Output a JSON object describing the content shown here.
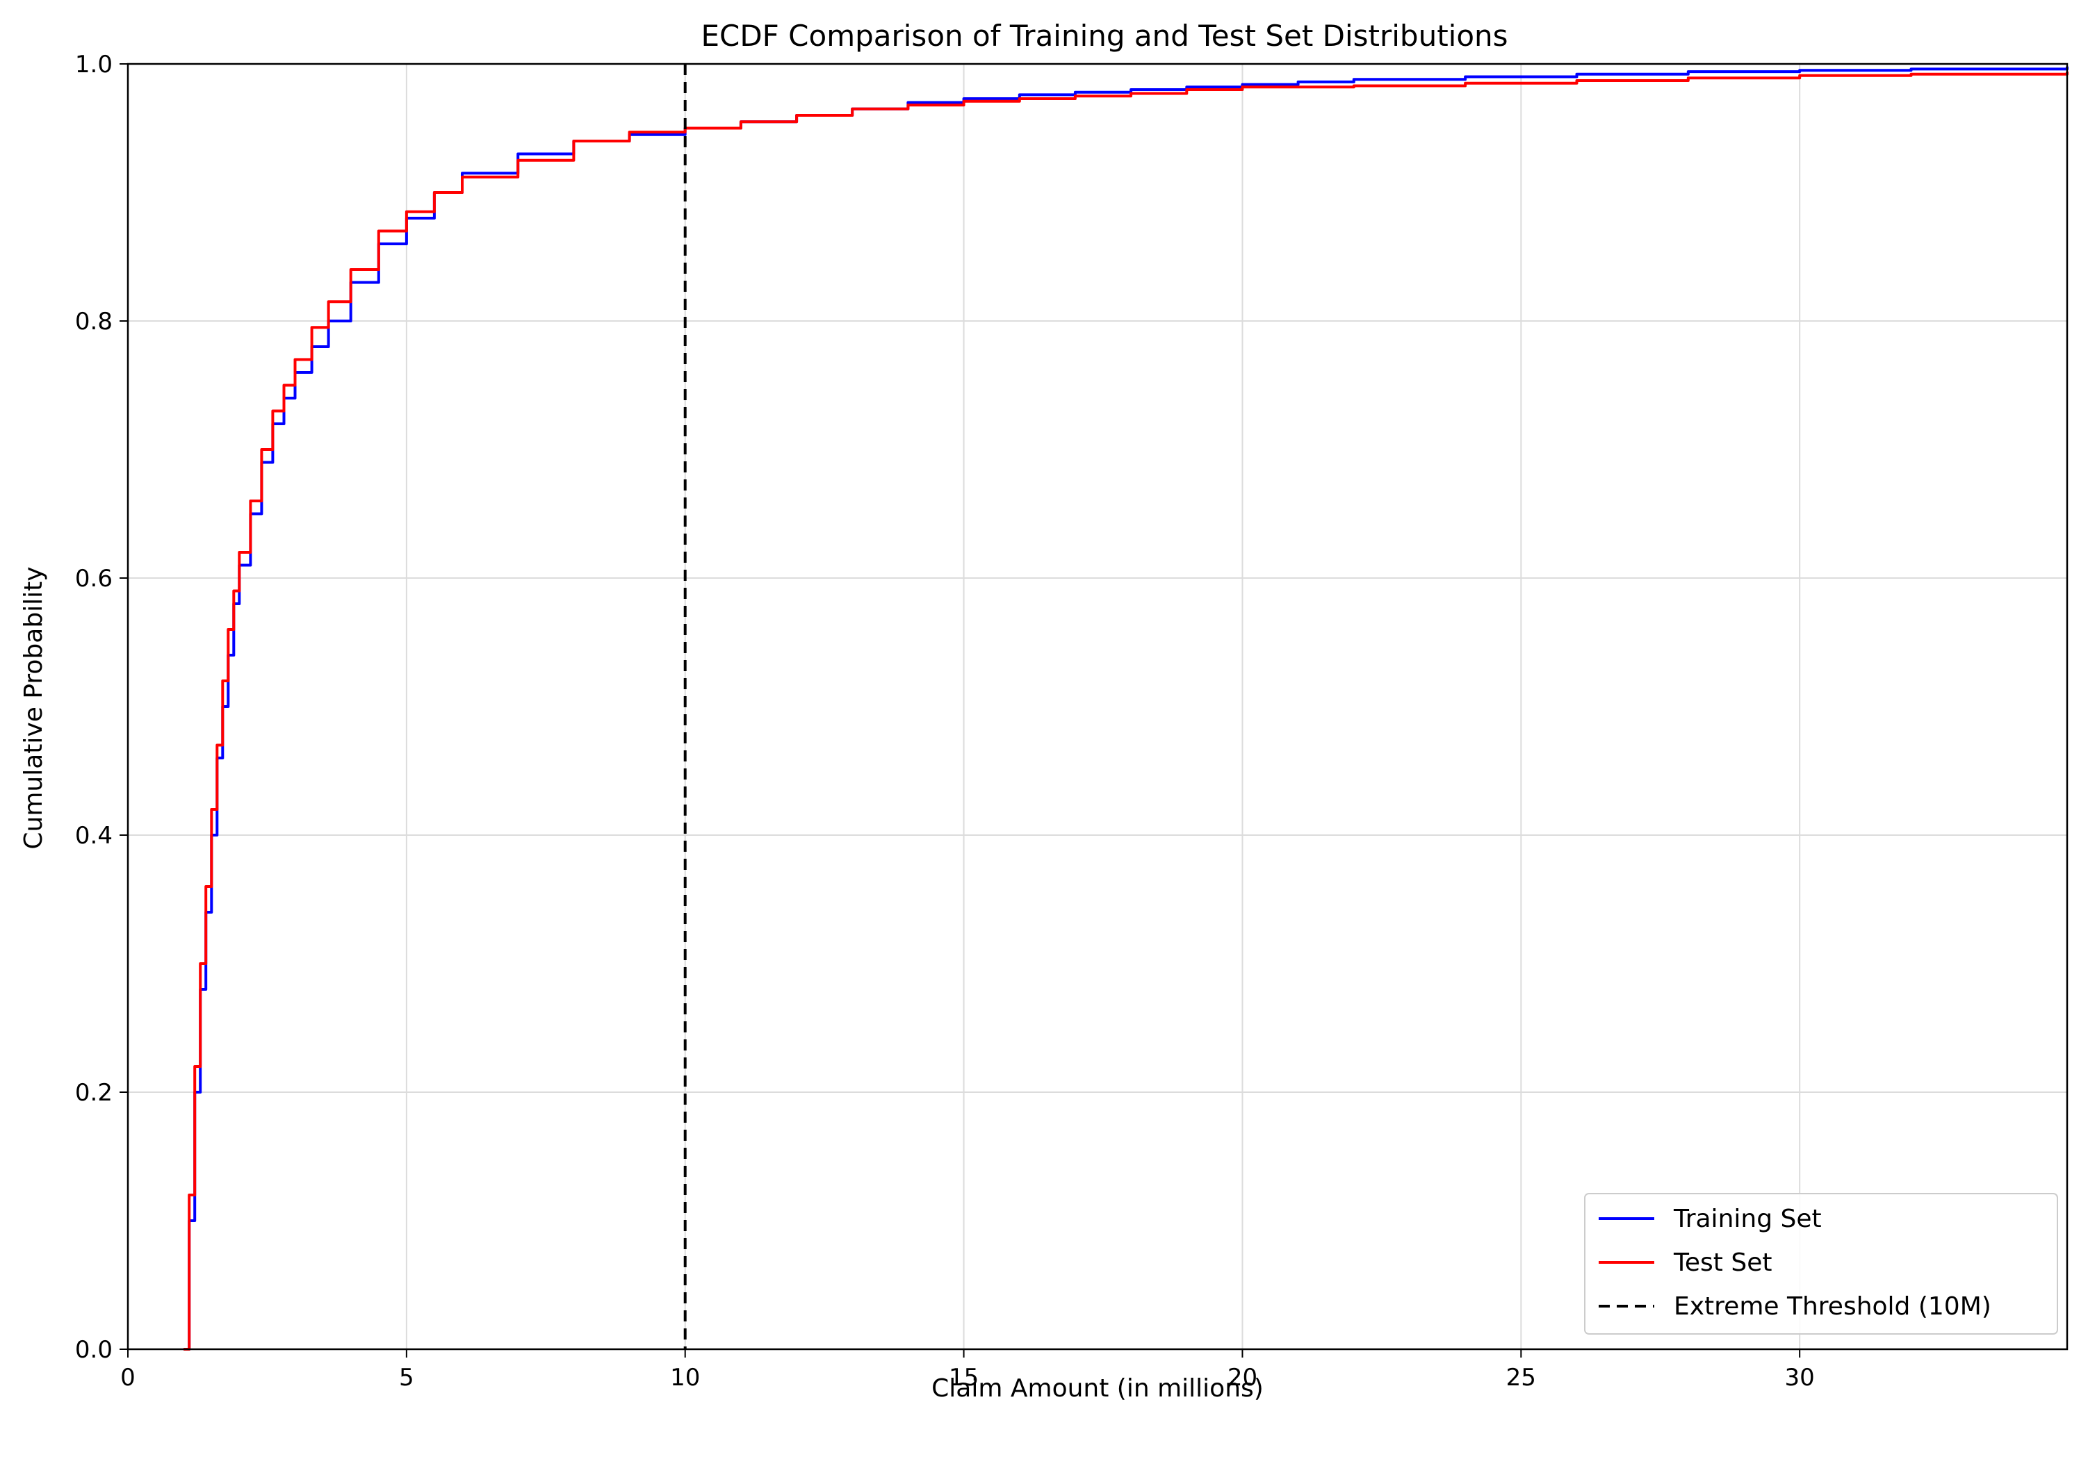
{
  "chart_data": {
    "type": "line",
    "title": "ECDF Comparison of Training and Test Set Distributions",
    "xlabel": "Claim Amount (in millions)",
    "ylabel": "Cumulative Probability",
    "xlim": [
      0,
      34.8
    ],
    "ylim": [
      0,
      1.0
    ],
    "xticks": [
      0,
      5,
      10,
      15,
      20,
      25,
      30
    ],
    "xtick_labels": [
      "0",
      "5",
      "10",
      "15",
      "20",
      "25",
      "30"
    ],
    "yticks": [
      0,
      0.2,
      0.4,
      0.6,
      0.8,
      1.0
    ],
    "ytick_labels": [
      "0.0",
      "0.2",
      "0.4",
      "0.6",
      "0.8",
      "1.0"
    ],
    "grid": true,
    "legend_position": "bottom-right",
    "series": [
      {
        "name": "Training Set",
        "color": "#0000ff",
        "points": [
          [
            1.0,
            0.0
          ],
          [
            1.1,
            0.1
          ],
          [
            1.2,
            0.2
          ],
          [
            1.3,
            0.28
          ],
          [
            1.4,
            0.34
          ],
          [
            1.5,
            0.4
          ],
          [
            1.6,
            0.46
          ],
          [
            1.7,
            0.5
          ],
          [
            1.8,
            0.54
          ],
          [
            1.9,
            0.58
          ],
          [
            2.0,
            0.61
          ],
          [
            2.2,
            0.65
          ],
          [
            2.4,
            0.69
          ],
          [
            2.6,
            0.72
          ],
          [
            2.8,
            0.74
          ],
          [
            3.0,
            0.76
          ],
          [
            3.3,
            0.78
          ],
          [
            3.6,
            0.8
          ],
          [
            4.0,
            0.83
          ],
          [
            4.5,
            0.86
          ],
          [
            5.0,
            0.88
          ],
          [
            5.5,
            0.9
          ],
          [
            6.0,
            0.915
          ],
          [
            7.0,
            0.93
          ],
          [
            8.0,
            0.94
          ],
          [
            9.0,
            0.945
          ],
          [
            10.0,
            0.95
          ],
          [
            11.0,
            0.955
          ],
          [
            12.0,
            0.96
          ],
          [
            13.0,
            0.965
          ],
          [
            14.0,
            0.97
          ],
          [
            15.0,
            0.973
          ],
          [
            16.0,
            0.976
          ],
          [
            17.0,
            0.978
          ],
          [
            18.0,
            0.98
          ],
          [
            19.0,
            0.982
          ],
          [
            20.0,
            0.984
          ],
          [
            21.0,
            0.986
          ],
          [
            22.0,
            0.988
          ],
          [
            24.0,
            0.99
          ],
          [
            26.0,
            0.992
          ],
          [
            28.0,
            0.994
          ],
          [
            30.0,
            0.995
          ],
          [
            32.0,
            0.996
          ],
          [
            34.8,
            0.998
          ]
        ]
      },
      {
        "name": "Test Set",
        "color": "#ff0000",
        "points": [
          [
            1.0,
            0.0
          ],
          [
            1.1,
            0.12
          ],
          [
            1.2,
            0.22
          ],
          [
            1.3,
            0.3
          ],
          [
            1.4,
            0.36
          ],
          [
            1.5,
            0.42
          ],
          [
            1.6,
            0.47
          ],
          [
            1.7,
            0.52
          ],
          [
            1.8,
            0.56
          ],
          [
            1.9,
            0.59
          ],
          [
            2.0,
            0.62
          ],
          [
            2.2,
            0.66
          ],
          [
            2.4,
            0.7
          ],
          [
            2.6,
            0.73
          ],
          [
            2.8,
            0.75
          ],
          [
            3.0,
            0.77
          ],
          [
            3.3,
            0.795
          ],
          [
            3.6,
            0.815
          ],
          [
            4.0,
            0.84
          ],
          [
            4.5,
            0.87
          ],
          [
            5.0,
            0.885
          ],
          [
            5.5,
            0.9
          ],
          [
            6.0,
            0.912
          ],
          [
            7.0,
            0.925
          ],
          [
            8.0,
            0.94
          ],
          [
            9.0,
            0.947
          ],
          [
            10.0,
            0.95
          ],
          [
            11.0,
            0.955
          ],
          [
            12.0,
            0.96
          ],
          [
            13.0,
            0.965
          ],
          [
            14.0,
            0.968
          ],
          [
            15.0,
            0.971
          ],
          [
            16.0,
            0.973
          ],
          [
            17.0,
            0.975
          ],
          [
            18.0,
            0.977
          ],
          [
            19.0,
            0.98
          ],
          [
            20.0,
            0.982
          ],
          [
            22.0,
            0.983
          ],
          [
            24.0,
            0.985
          ],
          [
            26.0,
            0.987
          ],
          [
            28.0,
            0.989
          ],
          [
            30.0,
            0.991
          ],
          [
            32.0,
            0.992
          ],
          [
            34.8,
            0.994
          ]
        ]
      }
    ],
    "reference_lines": [
      {
        "name": "Extreme Threshold (10M)",
        "orientation": "vertical",
        "x": 10,
        "color": "#000000",
        "style": "dashed"
      }
    ]
  }
}
